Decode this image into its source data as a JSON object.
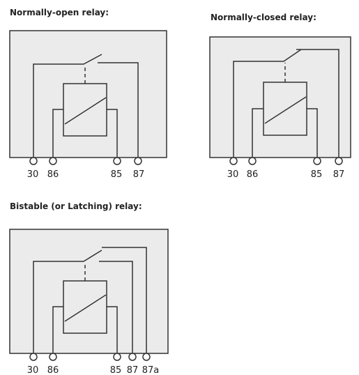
{
  "diagrams": [
    {
      "title": "Normally-open relay:",
      "pins": [
        "30",
        "86",
        "85",
        "87"
      ]
    },
    {
      "title": "Normally-closed relay:",
      "pins": [
        "30",
        "86",
        "85",
        "87"
      ]
    },
    {
      "title": "Bistable (or Latching) relay:",
      "pins": [
        "30",
        "86",
        "85",
        "87",
        "87a"
      ]
    }
  ]
}
